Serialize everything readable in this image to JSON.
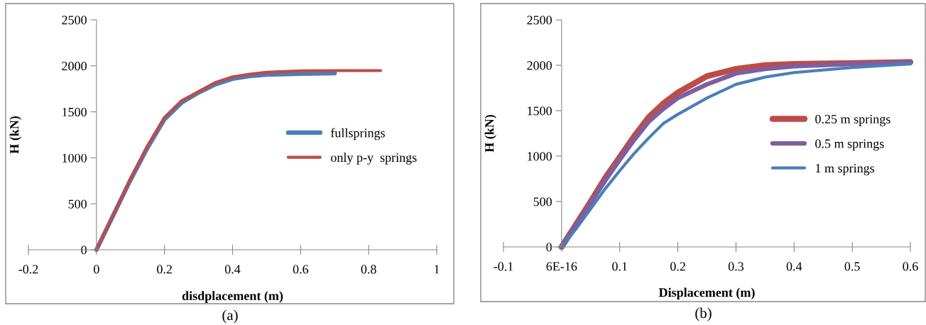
{
  "chart_data": [
    {
      "type": "line",
      "xlabel": "disdplacement (m)",
      "ylabel": "H (kN)",
      "annotations": [
        "(a)"
      ],
      "xlim": [
        -0.2,
        1
      ],
      "xticks": [
        -0.2,
        0,
        0.2,
        0.4,
        0.6,
        0.8,
        1
      ],
      "ylim": [
        0,
        2500
      ],
      "yticks": [
        0,
        500,
        1000,
        1500,
        2000,
        2500
      ],
      "grid": false,
      "legend": "right",
      "marker": "none",
      "line_style": "solid",
      "series": [
        {
          "name": "fullsprings",
          "color": "#4a7ebb",
          "x": [
            0,
            0.05,
            0.1,
            0.15,
            0.2,
            0.25,
            0.3,
            0.35,
            0.4,
            0.45,
            0.5,
            0.6,
            0.7
          ],
          "values": [
            0,
            380,
            760,
            1110,
            1420,
            1600,
            1710,
            1800,
            1860,
            1890,
            1905,
            1915,
            1920
          ]
        },
        {
          "name": "only p-y  springs",
          "color": "#be4b48",
          "x": [
            0,
            0.05,
            0.1,
            0.15,
            0.2,
            0.25,
            0.3,
            0.35,
            0.4,
            0.45,
            0.5,
            0.6,
            0.7,
            0.835
          ],
          "values": [
            0,
            380,
            770,
            1130,
            1440,
            1620,
            1720,
            1820,
            1880,
            1910,
            1930,
            1945,
            1948,
            1948
          ]
        }
      ]
    },
    {
      "type": "line",
      "xlabel": "Displacement (m)",
      "ylabel": "H (kN)",
      "annotations": [
        "(b)"
      ],
      "xlim": [
        -0.1,
        0.6
      ],
      "xticks": [
        -0.1,
        {
          "value": 0,
          "label": "6E-16"
        },
        0.1,
        0.2,
        0.3,
        0.4,
        0.5,
        0.6
      ],
      "ylim": [
        0,
        2500
      ],
      "yticks": [
        0,
        500,
        1000,
        1500,
        2000,
        2500
      ],
      "grid": false,
      "legend": "right",
      "marker": "none",
      "line_style": "solid",
      "series": [
        {
          "name": "0.25 m springs",
          "color": "#be4b48",
          "x": [
            0,
            0.025,
            0.05,
            0.075,
            0.1,
            0.125,
            0.15,
            0.175,
            0.2,
            0.25,
            0.3,
            0.35,
            0.4,
            0.5,
            0.6
          ],
          "values": [
            0,
            250,
            500,
            760,
            990,
            1220,
            1430,
            1580,
            1700,
            1880,
            1960,
            2000,
            2015,
            2025,
            2035
          ]
        },
        {
          "name": "0.5 m springs",
          "color": "#7d5fa0",
          "x": [
            0,
            0.025,
            0.05,
            0.075,
            0.1,
            0.125,
            0.15,
            0.175,
            0.2,
            0.25,
            0.3,
            0.35,
            0.4,
            0.5,
            0.6
          ],
          "values": [
            0,
            240,
            480,
            730,
            960,
            1180,
            1380,
            1520,
            1640,
            1790,
            1910,
            1960,
            1990,
            2015,
            2030
          ]
        },
        {
          "name": "1 m springs",
          "color": "#4a7ebb",
          "x": [
            0,
            0.025,
            0.05,
            0.075,
            0.1,
            0.125,
            0.15,
            0.175,
            0.2,
            0.25,
            0.3,
            0.35,
            0.4,
            0.5,
            0.6
          ],
          "values": [
            0,
            200,
            420,
            640,
            840,
            1030,
            1200,
            1360,
            1460,
            1640,
            1790,
            1870,
            1920,
            1975,
            2015
          ]
        }
      ]
    }
  ]
}
